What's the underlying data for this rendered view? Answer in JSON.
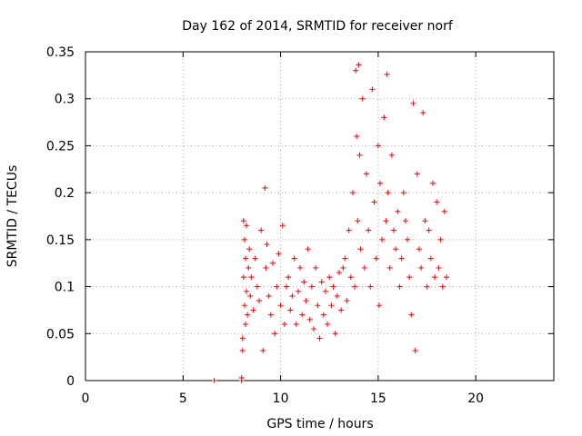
{
  "chart_data": {
    "type": "scatter",
    "title": "Day 162 of 2014, SRMTID for receiver norf",
    "xlabel": "GPS time / hours",
    "ylabel": "SRMTID / TECUs",
    "xlim": [
      0,
      24
    ],
    "ylim": [
      0,
      0.35
    ],
    "grid": true,
    "marker": "plus",
    "marker_color": "#e41a1c",
    "x_ticks": [
      {
        "value": 0,
        "label": "0"
      },
      {
        "value": 5,
        "label": "5"
      },
      {
        "value": 10,
        "label": "10"
      },
      {
        "value": 15,
        "label": "15"
      },
      {
        "value": 20,
        "label": "20"
      }
    ],
    "y_ticks": [
      {
        "value": 0,
        "label": "0"
      },
      {
        "value": 0.05,
        "label": "0.05"
      },
      {
        "value": 0.1,
        "label": "0.1"
      },
      {
        "value": 0.15,
        "label": "0.15"
      },
      {
        "value": 0.2,
        "label": "0.2"
      },
      {
        "value": 0.25,
        "label": "0.25"
      },
      {
        "value": 0.3,
        "label": "0.3"
      },
      {
        "value": 0.35,
        "label": "0.35"
      }
    ],
    "series": [
      {
        "name": "SRMTID",
        "x": [
          6.6,
          8.0,
          8.0,
          8.05,
          8.05,
          8.1,
          8.1,
          8.15,
          8.15,
          8.2,
          8.2,
          8.25,
          8.25,
          8.3,
          8.35,
          8.4,
          8.45,
          8.5,
          8.6,
          8.7,
          8.8,
          8.9,
          9.0,
          9.1,
          9.2,
          9.25,
          9.3,
          9.4,
          9.5,
          9.6,
          9.7,
          9.8,
          9.9,
          10.0,
          10.1,
          10.2,
          10.3,
          10.4,
          10.5,
          10.6,
          10.7,
          10.8,
          10.9,
          11.0,
          11.1,
          11.2,
          11.3,
          11.4,
          11.5,
          11.6,
          11.7,
          11.8,
          11.9,
          12.0,
          12.1,
          12.2,
          12.3,
          12.4,
          12.5,
          12.6,
          12.7,
          12.8,
          12.9,
          13.0,
          13.1,
          13.2,
          13.3,
          13.4,
          13.5,
          13.6,
          13.7,
          13.8,
          13.85,
          13.9,
          13.95,
          14.0,
          14.05,
          14.1,
          14.2,
          14.3,
          14.4,
          14.5,
          14.6,
          14.7,
          14.8,
          14.9,
          15.0,
          15.05,
          15.1,
          15.2,
          15.3,
          15.4,
          15.45,
          15.5,
          15.6,
          15.7,
          15.8,
          15.9,
          16.0,
          16.1,
          16.2,
          16.3,
          16.4,
          16.5,
          16.6,
          16.7,
          16.8,
          16.9,
          17.0,
          17.1,
          17.2,
          17.3,
          17.4,
          17.5,
          17.6,
          17.7,
          17.8,
          17.9,
          18.0,
          18.1,
          18.2,
          18.3,
          18.4,
          18.5
        ],
        "y": [
          0.0,
          0.0,
          0.003,
          0.032,
          0.045,
          0.11,
          0.17,
          0.08,
          0.15,
          0.06,
          0.13,
          0.095,
          0.165,
          0.07,
          0.12,
          0.14,
          0.09,
          0.11,
          0.075,
          0.13,
          0.1,
          0.085,
          0.16,
          0.032,
          0.205,
          0.12,
          0.145,
          0.09,
          0.07,
          0.125,
          0.05,
          0.1,
          0.135,
          0.08,
          0.165,
          0.06,
          0.1,
          0.11,
          0.075,
          0.09,
          0.13,
          0.06,
          0.095,
          0.12,
          0.07,
          0.105,
          0.085,
          0.14,
          0.065,
          0.1,
          0.055,
          0.12,
          0.08,
          0.045,
          0.105,
          0.07,
          0.095,
          0.06,
          0.11,
          0.08,
          0.1,
          0.05,
          0.09,
          0.115,
          0.075,
          0.12,
          0.13,
          0.085,
          0.16,
          0.11,
          0.2,
          0.1,
          0.33,
          0.26,
          0.17,
          0.336,
          0.24,
          0.14,
          0.3,
          0.12,
          0.22,
          0.16,
          0.1,
          0.31,
          0.19,
          0.13,
          0.25,
          0.08,
          0.21,
          0.15,
          0.28,
          0.17,
          0.326,
          0.2,
          0.12,
          0.24,
          0.16,
          0.14,
          0.18,
          0.1,
          0.13,
          0.2,
          0.17,
          0.15,
          0.11,
          0.07,
          0.295,
          0.032,
          0.22,
          0.14,
          0.12,
          0.285,
          0.17,
          0.1,
          0.16,
          0.13,
          0.21,
          0.11,
          0.19,
          0.12,
          0.15,
          0.1,
          0.18,
          0.11
        ]
      }
    ]
  }
}
